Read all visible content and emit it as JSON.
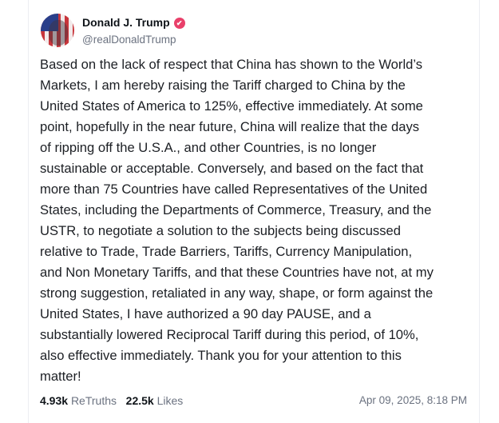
{
  "author": {
    "name": "Donald J. Trump",
    "handle": "@realDonaldTrump",
    "verified": true,
    "verified_color": "#e9406a"
  },
  "post": {
    "lines": [
      "Based on the lack of respect that China has shown to the World’s",
      "Markets, I am hereby raising the Tariff charged to China by the",
      "United States of America to 125%, effective immediately. At some",
      "point, hopefully in the near future, China will realize that the days",
      "of ripping off the U.S.A., and other Countries, is no longer",
      "sustainable or acceptable. Conversely, and based on the fact that",
      "more than 75 Countries have called Representatives of the United",
      "States, including the Departments of Commerce, Treasury, and the",
      "USTR, to negotiate a solution to the subjects being discussed",
      "relative to Trade, Trade Barriers, Tariffs, Currency Manipulation,",
      "and Non Monetary Tariffs, and that these Countries have not, at my",
      "strong suggestion, retaliated in any way, shape, or form against the",
      "United States, I have authorized a 90 day PAUSE, and a",
      "substantially lowered Reciprocal Tariff during this period, of 10%,",
      "also effective immediately. Thank you for your attention to this",
      "matter!"
    ]
  },
  "stats": {
    "retruths_count": "4.93k",
    "retruths_label": "ReTruths",
    "likes_count": "22.5k",
    "likes_label": "Likes",
    "timestamp": "Apr 09, 2025, 8:18 PM"
  }
}
